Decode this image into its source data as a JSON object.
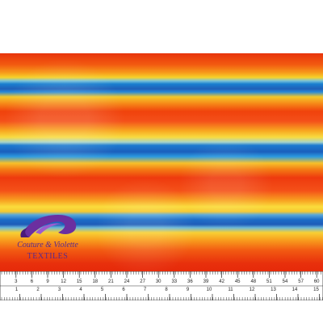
{
  "logo": {
    "name": "Couture & Violette",
    "subtitle": "TEXTILES"
  },
  "ruler": {
    "top_labels": [
      "3",
      "6",
      "9",
      "12",
      "15",
      "18",
      "21",
      "24",
      "27",
      "30",
      "33",
      "36",
      "39",
      "42",
      "45",
      "48",
      "51",
      "54",
      "57",
      "60"
    ],
    "bottom_labels": [
      "1",
      "2",
      "3",
      "4",
      "5",
      "6",
      "7",
      "8",
      "9",
      "10",
      "11",
      "12",
      "13",
      "14",
      "15"
    ]
  }
}
